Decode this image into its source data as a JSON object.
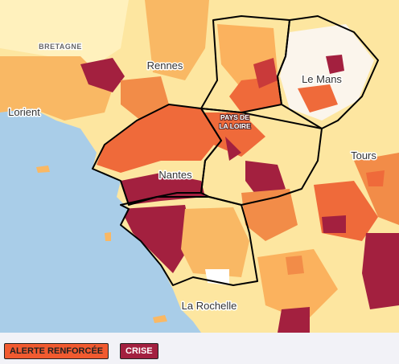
{
  "map": {
    "labels": [
      "BRETAGNE",
      "Rennes",
      "Lorient",
      "Le Mans",
      "Nantes",
      "Tours",
      "La Rochelle"
    ],
    "region": [
      "PAYS DE",
      "LA LOIRE"
    ]
  },
  "legend": {
    "items": [
      "ALERTE RENFORCÉE",
      "CRISE"
    ]
  }
}
